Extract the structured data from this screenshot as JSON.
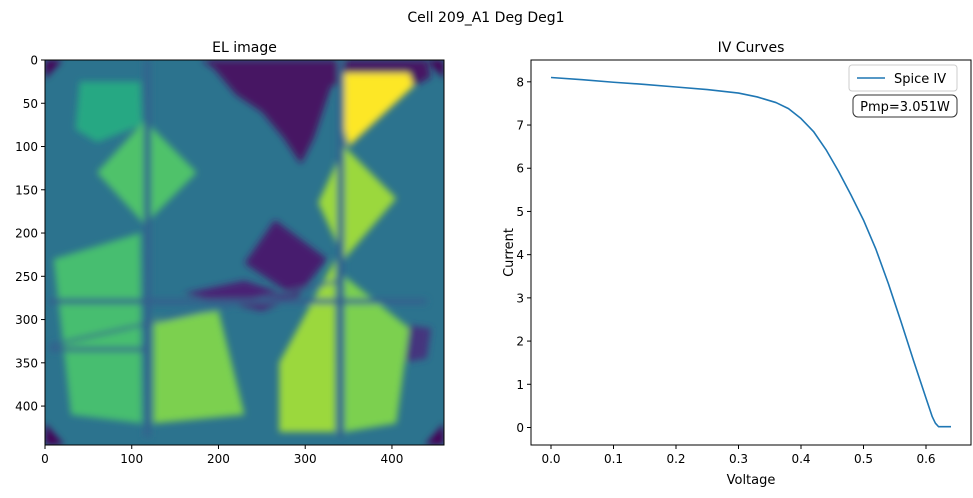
{
  "figure": {
    "suptitle": "Cell 209_A1 Deg Deg1"
  },
  "chart_data": [
    {
      "type": "heatmap",
      "title": "EL image",
      "xlabel": "",
      "ylabel": "",
      "xlim": [
        0,
        460
      ],
      "ylim": [
        445,
        0
      ],
      "xticks": [
        0,
        100,
        200,
        300,
        400
      ],
      "yticks": [
        0,
        50,
        100,
        150,
        200,
        250,
        300,
        350,
        400
      ],
      "colormap": "viridis",
      "background_level": 0.38,
      "features": [
        {
          "name": "dark-corner-top-left",
          "kind": "polygon",
          "level": 0.0,
          "points": [
            [
              0,
              0
            ],
            [
              20,
              0
            ],
            [
              0,
              22
            ]
          ]
        },
        {
          "name": "dark-corner-top-right",
          "kind": "polygon",
          "level": 0.0,
          "points": [
            [
              440,
              0
            ],
            [
              460,
              0
            ],
            [
              460,
              22
            ]
          ]
        },
        {
          "name": "dark-corner-bottom-left",
          "kind": "polygon",
          "level": 0.0,
          "points": [
            [
              0,
              420
            ],
            [
              0,
              445
            ],
            [
              22,
              445
            ]
          ]
        },
        {
          "name": "dark-corner-bottom-right",
          "kind": "polygon",
          "level": 0.0,
          "points": [
            [
              460,
              420
            ],
            [
              460,
              445
            ],
            [
              438,
              445
            ]
          ]
        },
        {
          "name": "dark-region-top",
          "kind": "polygon",
          "level": 0.05,
          "points": [
            [
              180,
              0
            ],
            [
              440,
              0
            ],
            [
              445,
              20
            ],
            [
              415,
              35
            ],
            [
              380,
              20
            ],
            [
              330,
              30
            ],
            [
              310,
              90
            ],
            [
              295,
              120
            ],
            [
              275,
              90
            ],
            [
              250,
              60
            ],
            [
              220,
              40
            ],
            [
              195,
              10
            ]
          ]
        },
        {
          "name": "dark-diamond-center",
          "kind": "polygon",
          "level": 0.08,
          "points": [
            [
              265,
              185
            ],
            [
              325,
              230
            ],
            [
              290,
              275
            ],
            [
              230,
              235
            ]
          ]
        },
        {
          "name": "dark-strip-middle",
          "kind": "polygon",
          "level": 0.1,
          "points": [
            [
              160,
              270
            ],
            [
              250,
              290
            ],
            [
              290,
              275
            ],
            [
              230,
              255
            ]
          ]
        },
        {
          "name": "dark-region-bottom-right",
          "kind": "polygon",
          "level": 0.15,
          "points": [
            [
              370,
              300
            ],
            [
              445,
              310
            ],
            [
              440,
              345
            ],
            [
              380,
              355
            ]
          ]
        },
        {
          "name": "gradient-left-upper",
          "kind": "polygon",
          "level": 0.6,
          "points": [
            [
              40,
              25
            ],
            [
              110,
              25
            ],
            [
              112,
              75
            ],
            [
              60,
              95
            ],
            [
              35,
              80
            ]
          ]
        },
        {
          "name": "diamond-bright-left-mid",
          "kind": "polygon",
          "level": 0.72,
          "points": [
            [
              115,
              70
            ],
            [
              175,
              130
            ],
            [
              115,
              190
            ],
            [
              60,
              130
            ]
          ]
        },
        {
          "name": "gradient-left-lower",
          "kind": "polygon",
          "level": 0.7,
          "points": [
            [
              10,
              230
            ],
            [
              110,
              200
            ],
            [
              112,
              420
            ],
            [
              30,
              410
            ]
          ]
        },
        {
          "name": "bright-center-lower",
          "kind": "polygon",
          "level": 0.8,
          "points": [
            [
              125,
              300
            ],
            [
              200,
              290
            ],
            [
              230,
              410
            ],
            [
              125,
              420
            ]
          ]
        },
        {
          "name": "bright-lower-right-center",
          "kind": "polygon",
          "level": 0.85,
          "points": [
            [
              270,
              350
            ],
            [
              335,
              230
            ],
            [
              335,
              430
            ],
            [
              270,
              430
            ]
          ]
        },
        {
          "name": "diamond-bright-right-mid",
          "kind": "polygon",
          "level": 0.85,
          "points": [
            [
              345,
              100
            ],
            [
              405,
              160
            ],
            [
              345,
              230
            ],
            [
              315,
              165
            ]
          ]
        },
        {
          "name": "bright-right-lower",
          "kind": "polygon",
          "level": 0.8,
          "points": [
            [
              345,
              250
            ],
            [
              420,
              310
            ],
            [
              405,
              420
            ],
            [
              345,
              430
            ]
          ]
        },
        {
          "name": "hotspot-top-right",
          "kind": "polygon",
          "level": 1.0,
          "points": [
            [
              345,
              15
            ],
            [
              420,
              15
            ],
            [
              425,
              30
            ],
            [
              350,
              100
            ],
            [
              345,
              80
            ]
          ]
        },
        {
          "name": "busbar-left",
          "kind": "band",
          "level": 0.32,
          "x0": 114,
          "x1": 122,
          "y0": 0,
          "y1": 436
        },
        {
          "name": "busbar-right",
          "kind": "band",
          "level": 0.32,
          "x0": 337,
          "x1": 345,
          "y0": 0,
          "y1": 436
        },
        {
          "name": "crack-line-horizontal-1",
          "kind": "band",
          "level": 0.3,
          "x0": 5,
          "x1": 440,
          "y0": 276,
          "y1": 282
        },
        {
          "name": "crack-line-horizontal-2",
          "kind": "band",
          "level": 0.3,
          "x0": 5,
          "x1": 120,
          "y0": 332,
          "y1": 337
        },
        {
          "name": "crack-line-diagonal",
          "kind": "line",
          "level": 0.3,
          "from": [
            5,
            330
          ],
          "to": [
            340,
            255
          ],
          "width": 3
        }
      ]
    },
    {
      "type": "line",
      "title": "IV Curves",
      "xlabel": "Voltage",
      "ylabel": "Current",
      "xlim": [
        -0.032,
        0.672
      ],
      "ylim": [
        -0.405,
        8.505
      ],
      "xticks": [
        "0.0",
        "0.1",
        "0.2",
        "0.3",
        "0.4",
        "0.5",
        "0.6"
      ],
      "yticks": [
        "0",
        "1",
        "2",
        "3",
        "4",
        "5",
        "6",
        "7",
        "8"
      ],
      "legend": {
        "position": "top-right",
        "entries": [
          "Spice IV"
        ]
      },
      "annotation": "Pmp=3.051W",
      "series": [
        {
          "name": "Spice IV",
          "color": "#1f77b4",
          "x": [
            0.0,
            0.05,
            0.1,
            0.15,
            0.2,
            0.25,
            0.3,
            0.33,
            0.36,
            0.38,
            0.4,
            0.42,
            0.44,
            0.46,
            0.48,
            0.5,
            0.52,
            0.54,
            0.56,
            0.58,
            0.6,
            0.61,
            0.615,
            0.62,
            0.64
          ],
          "y": [
            8.1,
            8.05,
            7.99,
            7.94,
            7.88,
            7.82,
            7.74,
            7.65,
            7.52,
            7.38,
            7.15,
            6.85,
            6.43,
            5.93,
            5.38,
            4.8,
            4.12,
            3.32,
            2.45,
            1.55,
            0.68,
            0.25,
            0.1,
            0.02,
            0.02
          ]
        }
      ]
    }
  ],
  "colors": {
    "line": "#1f77b4",
    "axis": "#000000"
  }
}
